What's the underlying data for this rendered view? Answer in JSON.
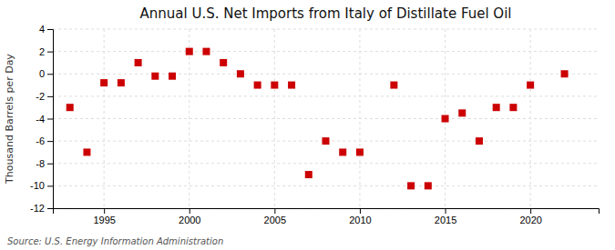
{
  "chart_data": {
    "type": "scatter",
    "title": "Annual U.S. Net Imports from Italy of Distillate Fuel Oil",
    "ylabel": "Thousand Barrels per Day",
    "source": "Source: U.S. Energy Information Administration",
    "x": [
      1993,
      1994,
      1995,
      1996,
      1997,
      1998,
      1999,
      2000,
      2001,
      2002,
      2003,
      2004,
      2005,
      2006,
      2007,
      2008,
      2009,
      2010,
      2012,
      2013,
      2014,
      2015,
      2016,
      2017,
      2018,
      2019,
      2020,
      2022
    ],
    "values": [
      -3.0,
      -7.0,
      -0.8,
      -0.8,
      1.0,
      -0.2,
      -0.2,
      2.0,
      2.0,
      1.0,
      0.0,
      -1.0,
      -1.0,
      -1.0,
      -9.0,
      -6.0,
      -7.0,
      -7.0,
      -1.0,
      -10.0,
      -10.0,
      -4.0,
      -3.5,
      -6.0,
      -3.0,
      -3.0,
      -1.0,
      0.0
    ],
    "xlim": [
      1992,
      2024
    ],
    "ylim": [
      -12,
      4
    ],
    "xticks": [
      1995,
      2000,
      2005,
      2010,
      2015,
      2020
    ],
    "yticks": [
      -12,
      -10,
      -8,
      -6,
      -4,
      -2,
      0,
      2,
      4
    ],
    "color": "#cc0000",
    "marker": "square",
    "grid": true
  }
}
